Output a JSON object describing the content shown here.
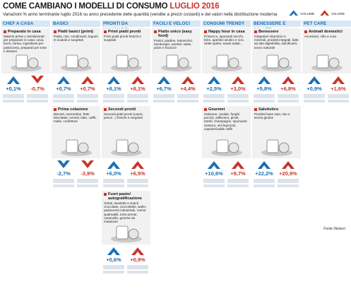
{
  "header": {
    "title": "COME CAMBIANO I MODELLI DI CONSUMO",
    "title_highlight": "LUGLIO 2016",
    "subtitle": "Variazioni % anno terminante luglio 2016 su anno precedente delle quantità (vendite a prezzi costanti) e dei valori nella distribuzione moderna",
    "legend": [
      "VOLUME",
      "VALORE"
    ]
  },
  "columns": [
    {
      "title": "CHEF A CASA",
      "items": [
        {
          "name": "Preparato in casa",
          "desc": "Materie prime o semilavorati per preparare in casa: uova, burro, farina, ingredienti per pasticceria, preparati per torte e dessert",
          "volume": "+0,1%",
          "valore": "-0,7%"
        }
      ]
    },
    {
      "title": "BASICI",
      "items": [
        {
          "name": "Piatti basici (primi)",
          "desc": "Pasta, riso, condimenti, legumi in scatola e surgelati",
          "volume": "+0,7%",
          "valore": "+0,7%"
        },
        {
          "name": "Prima colazione",
          "desc": "Biscotti, merendine, fette biscottate, cereali, latte, caffè, miele, confetture",
          "volume": "-2,7%",
          "valore": "-3,9%"
        }
      ]
    },
    {
      "title": "PRONTI DA MANGIARE",
      "items": [
        {
          "name": "Primi piatti pronti",
          "desc": "Primi piatti pronti freschi e surgelati",
          "volume": "+8,1%",
          "valore": "+8,1%"
        },
        {
          "name": "Secondi pronti",
          "desc": "Secondi piatti pronti (carne, pesce...) freschi e surgelati",
          "volume": "+6,0%",
          "valore": "+6,5%"
        },
        {
          "name": "Fuori pasto/ autogratificazione",
          "desc": "Gelati, tavolette e snack cioccolato, cioccolatini, wafer, pasticceria industriale, creme spalmabili, torte pronte, caramelle, gomme da masticare",
          "volume": "+0,6%",
          "valore": "+0,9%"
        }
      ]
    },
    {
      "title": "FACILI E VELOCI",
      "items": [
        {
          "name": "Piatto unico (easy food)",
          "desc": "Panini, piadine, tramezzini, hamburger, wurstel, salse, pizze e focacce",
          "volume": "+6,7%",
          "valore": "+4,4%"
        }
      ]
    },
    {
      "title": "CONSUMI TRENDY",
      "items": [
        {
          "name": "Happy hour in casa",
          "desc": "Prosecco, spumanti secchi, birre, aperitivi alcolici e non, white spirits, snack salati...",
          "volume": "+2,5%",
          "valore": "+3,0%"
        },
        {
          "name": "Gourmet",
          "desc": "Salmone, caviale, funghi porcini, zafferano, pinoli, tartufi, champagne, spumante classico, vini liquorosi, capsule/cialde caffè",
          "volume": "+10,6%",
          "valore": "+9,7%"
        }
      ]
    },
    {
      "title": "BENESSERE E SALUTE",
      "items": [
        {
          "name": "Benessere",
          "desc": "Integratori vitaminici e minerali, prodotti integrali, latte ad alta digeribilità, dolcificanti, tonno naturale",
          "volume": "+5,8%",
          "valore": "+6,8%"
        },
        {
          "name": "Salutistico",
          "desc": "Prodotti base soia, riso e senza glutine",
          "volume": "+22,2%",
          "valore": "+20,9%"
        }
      ]
    },
    {
      "title": "PET CARE",
      "items": [
        {
          "name": "Animali domestici",
          "desc": "Accessori, cibo e cura",
          "volume": "+0,9%",
          "valore": "+1,6%"
        }
      ]
    }
  ],
  "source": "Fonte Nielsen"
}
